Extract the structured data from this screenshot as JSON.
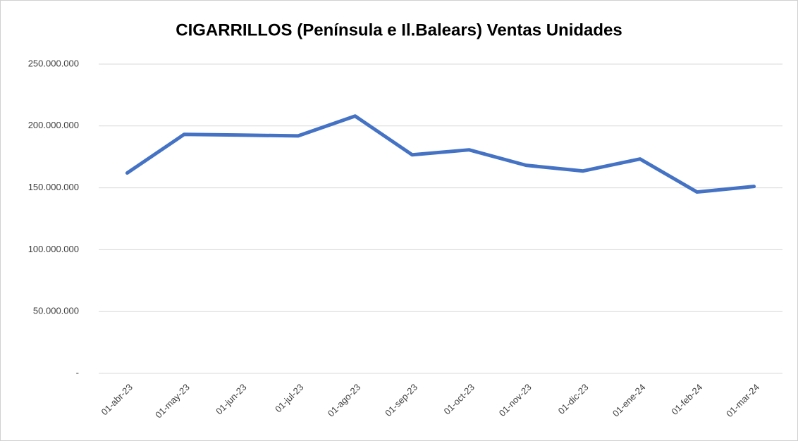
{
  "chart_data": {
    "type": "line",
    "title": "CIGARRILLOS (Península e Il.Balears) Ventas Unidades",
    "categories": [
      "01-abr-23",
      "01-may-23",
      "01-jun-23",
      "01-jul-23",
      "01-ago-23",
      "01-sep-23",
      "01-oct-23",
      "01-nov-23",
      "01-dic-23",
      "01-ene-24",
      "01-feb-24",
      "01-mar-24"
    ],
    "series": [
      {
        "name": "Ventas Unidades",
        "color": "#4472c4",
        "values": [
          162000000,
          193200000,
          192600000,
          192000000,
          208000000,
          176700000,
          180700000,
          168200000,
          163600000,
          173300000,
          146600000,
          151100000
        ]
      }
    ],
    "ylim": [
      0,
      250000000
    ],
    "yticks": [
      {
        "value": 0,
        "label": "-"
      },
      {
        "value": 50000000,
        "label": "50.000.000"
      },
      {
        "value": 100000000,
        "label": "100.000.000"
      },
      {
        "value": 150000000,
        "label": "150.000.000"
      },
      {
        "value": 200000000,
        "label": "200.000.000"
      },
      {
        "value": 250000000,
        "label": "250.000.000"
      }
    ],
    "grid": true
  }
}
